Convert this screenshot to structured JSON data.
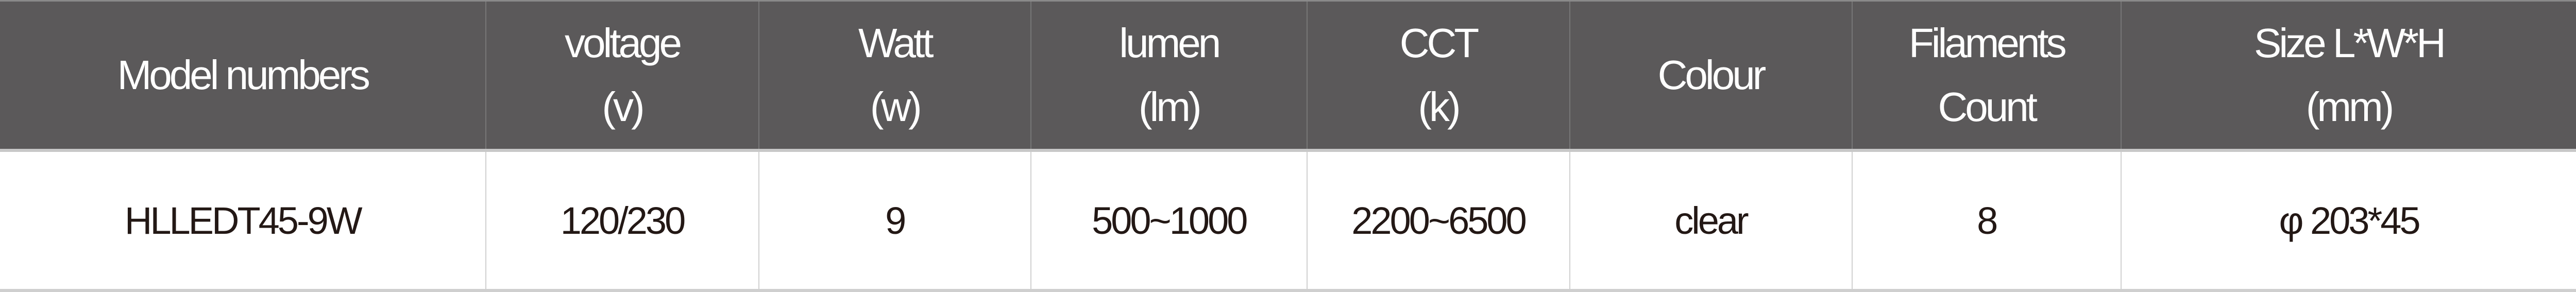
{
  "colors": {
    "header_bg": "#5b595a",
    "header_text": "#ffffff",
    "body_text": "#231815"
  },
  "table": {
    "headers": [
      {
        "line1": "Model numbers",
        "line2": ""
      },
      {
        "line1": "voltage",
        "line2": "(v)"
      },
      {
        "line1": "Watt",
        "line2": "(w)"
      },
      {
        "line1": "lumen",
        "line2": "(lm)"
      },
      {
        "line1": "CCT",
        "line2": "(k)"
      },
      {
        "line1": "Colour",
        "line2": ""
      },
      {
        "line1": "Filaments",
        "line2": "Count"
      },
      {
        "line1": "Size L*W*H",
        "line2": "(mm)"
      }
    ],
    "rows": [
      [
        "HLLEDT45-9W",
        "120/230",
        "9",
        "500~1000",
        "2200~6500",
        "clear",
        "8",
        "φ 203*45"
      ]
    ]
  }
}
